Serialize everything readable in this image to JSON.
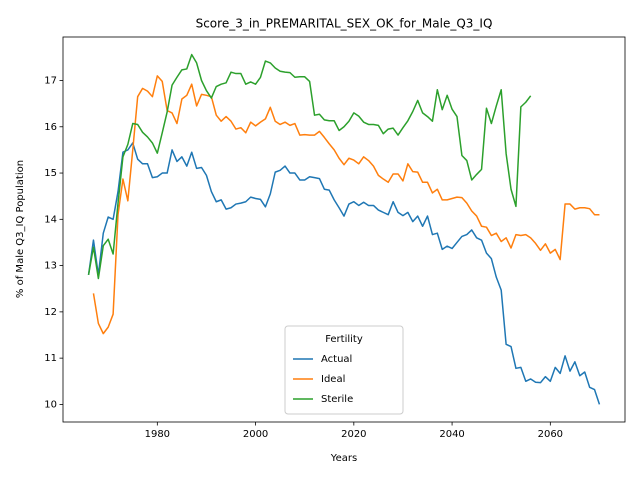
{
  "chart_data": {
    "type": "line",
    "title": "Score_3_in_PREMARITAL_SEX_OK_for_Male_Q3_IQ",
    "xlabel": "Years",
    "ylabel": "% of Male Q3_IQ Population",
    "legend_title": "Fertility",
    "legend": "lower center",
    "grid": false,
    "xlim": [
      1960.8,
      2075.2
    ],
    "ylim": [
      9.62,
      17.94
    ],
    "xticks": [
      1980,
      2000,
      2020,
      2040,
      2060
    ],
    "yticks": [
      10,
      11,
      12,
      13,
      14,
      15,
      16,
      17
    ],
    "x": [
      1966,
      1967,
      1968,
      1969,
      1970,
      1971,
      1972,
      1973,
      1974,
      1975,
      1976,
      1977,
      1978,
      1979,
      1980,
      1981,
      1982,
      1983,
      1984,
      1985,
      1986,
      1987,
      1988,
      1989,
      1990,
      1991,
      1992,
      1993,
      1994,
      1995,
      1996,
      1997,
      1998,
      1999,
      2000,
      2001,
      2002,
      2003,
      2004,
      2005,
      2006,
      2007,
      2008,
      2009,
      2010,
      2011,
      2012,
      2013,
      2014,
      2015,
      2016,
      2017,
      2018,
      2019,
      2020,
      2021,
      2022,
      2023,
      2024,
      2025,
      2026,
      2027,
      2028,
      2029,
      2030,
      2031,
      2032,
      2033,
      2034,
      2035,
      2036,
      2037,
      2038,
      2039,
      2040,
      2041,
      2042,
      2043,
      2044,
      2045,
      2046,
      2047,
      2048,
      2049,
      2050,
      2051,
      2052,
      2053,
      2054,
      2055,
      2056,
      2057,
      2058,
      2059,
      2060,
      2061,
      2062,
      2063,
      2064,
      2065,
      2066,
      2067,
      2068,
      2069,
      2070
    ],
    "series": [
      {
        "name": "Actual",
        "color": "#1f77b4",
        "values": [
          12.8,
          13.55,
          12.8,
          13.7,
          14.05,
          14.0,
          14.6,
          15.45,
          15.5,
          15.65,
          15.3,
          15.2,
          15.2,
          14.9,
          14.92,
          15.0,
          15.0,
          15.5,
          15.25,
          15.35,
          15.15,
          15.45,
          15.1,
          15.12,
          14.95,
          14.6,
          14.38,
          14.42,
          14.22,
          14.25,
          14.33,
          14.35,
          14.38,
          14.48,
          14.45,
          14.43,
          14.27,
          14.55,
          15.02,
          15.06,
          15.15,
          15.0,
          15.0,
          14.85,
          14.85,
          14.92,
          14.9,
          14.88,
          14.65,
          14.63,
          14.42,
          14.25,
          14.07,
          14.33,
          14.38,
          14.3,
          14.37,
          14.3,
          14.3,
          14.2,
          14.15,
          14.1,
          14.38,
          14.15,
          14.08,
          14.15,
          13.95,
          14.07,
          13.85,
          14.07,
          13.67,
          13.7,
          13.35,
          13.42,
          13.37,
          13.5,
          13.63,
          13.67,
          13.77,
          13.6,
          13.55,
          13.27,
          13.15,
          12.75,
          12.47,
          11.3,
          11.25,
          10.78,
          10.8,
          10.5,
          10.55,
          10.48,
          10.47,
          10.6,
          10.5,
          10.8,
          10.67,
          11.05,
          10.72,
          10.92,
          10.62,
          10.7,
          10.37,
          10.32,
          10.0
        ]
      },
      {
        "name": "Ideal",
        "color": "#ff7f0e",
        "values": [
          null,
          12.4,
          11.75,
          11.53,
          11.67,
          11.95,
          14.1,
          14.87,
          14.4,
          15.5,
          16.65,
          16.83,
          16.77,
          16.65,
          17.1,
          16.98,
          16.35,
          16.3,
          16.07,
          16.6,
          16.68,
          16.92,
          16.45,
          16.7,
          16.68,
          16.65,
          16.25,
          16.12,
          16.22,
          16.12,
          15.95,
          15.98,
          15.87,
          16.1,
          16.02,
          16.1,
          16.17,
          16.42,
          16.12,
          16.05,
          16.1,
          16.03,
          16.07,
          15.82,
          15.83,
          15.82,
          15.82,
          15.9,
          15.77,
          15.63,
          15.5,
          15.32,
          15.18,
          15.32,
          15.28,
          15.2,
          15.35,
          15.27,
          15.15,
          14.95,
          14.87,
          14.8,
          14.98,
          14.98,
          14.83,
          15.2,
          15.03,
          15.02,
          14.8,
          14.8,
          14.57,
          14.65,
          14.42,
          14.42,
          14.45,
          14.48,
          14.47,
          14.35,
          14.18,
          14.07,
          13.85,
          13.83,
          13.65,
          13.7,
          13.52,
          13.6,
          13.38,
          13.67,
          13.65,
          13.67,
          13.6,
          13.48,
          13.33,
          13.47,
          13.27,
          13.35,
          13.13,
          14.33,
          14.33,
          14.22,
          14.25,
          14.25,
          14.23,
          14.1,
          14.1
        ]
      },
      {
        "name": "Sterile",
        "color": "#2ca02c",
        "values": [
          12.8,
          13.4,
          12.72,
          13.43,
          13.57,
          13.25,
          14.35,
          15.35,
          15.62,
          16.07,
          16.05,
          15.88,
          15.78,
          15.65,
          15.43,
          15.87,
          16.32,
          16.9,
          17.07,
          17.23,
          17.25,
          17.56,
          17.38,
          17.0,
          16.78,
          16.62,
          16.87,
          16.92,
          16.95,
          17.18,
          17.15,
          17.15,
          16.92,
          16.97,
          16.92,
          17.07,
          17.42,
          17.38,
          17.27,
          17.2,
          17.18,
          17.17,
          17.07,
          17.08,
          17.08,
          16.98,
          16.25,
          16.27,
          16.15,
          16.13,
          16.13,
          15.92,
          16.0,
          16.12,
          16.3,
          16.23,
          16.1,
          16.05,
          16.05,
          16.03,
          15.85,
          15.95,
          15.97,
          15.82,
          15.98,
          16.13,
          16.33,
          16.57,
          16.3,
          16.22,
          16.12,
          16.8,
          16.37,
          16.68,
          16.38,
          16.22,
          15.38,
          15.27,
          14.85,
          14.97,
          15.08,
          16.4,
          16.07,
          16.45,
          16.8,
          15.42,
          14.65,
          14.28,
          16.43,
          16.53,
          16.67,
          null,
          null,
          null,
          null,
          null,
          null,
          null,
          null,
          null,
          null,
          null,
          null,
          null,
          null
        ]
      }
    ]
  }
}
